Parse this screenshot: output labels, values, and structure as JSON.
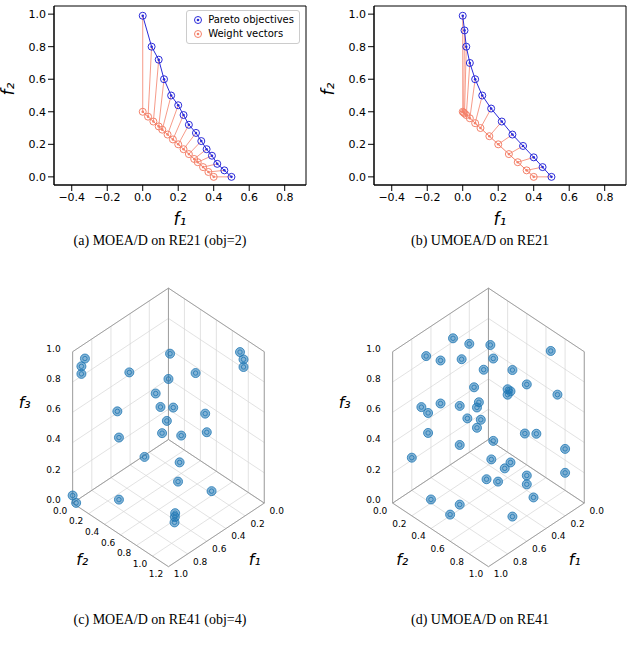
{
  "chart_data": [
    {
      "type": "scatter",
      "title": "(a) MOEA/D on RE21 (obj=2)",
      "xlabel": "f₁",
      "ylabel": "f₂",
      "xlim": [
        -0.5,
        0.92
      ],
      "xticks": [
        {
          "value": -0.4,
          "label": "−0.4"
        },
        {
          "value": -0.2,
          "label": "−0.2"
        },
        {
          "value": 0,
          "label": "0.0"
        },
        {
          "value": 0.2,
          "label": "0.2"
        },
        {
          "value": 0.4,
          "label": "0.4"
        },
        {
          "value": 0.6,
          "label": "0.6"
        },
        {
          "value": 0.8,
          "label": "0.8"
        }
      ],
      "ylim": [
        -0.05,
        1.05
      ],
      "yticks": [
        {
          "value": 0,
          "label": "0.0"
        },
        {
          "value": 0.2,
          "label": "0.2"
        },
        {
          "value": 0.4,
          "label": "0.4"
        },
        {
          "value": 0.6,
          "label": "0.6"
        },
        {
          "value": 0.8,
          "label": "0.8"
        },
        {
          "value": 1,
          "label": "1.0"
        }
      ],
      "grid": false,
      "legend": "upper right",
      "series": [
        {
          "name": "Pareto objectives",
          "color": "#2b2bd9",
          "marker": "circle",
          "line_style": "solid",
          "x": [
            0,
            0.05,
            0.09,
            0.12,
            0.16,
            0.2,
            0.23,
            0.26,
            0.3,
            0.33,
            0.36,
            0.39,
            0.42,
            0.46,
            0.5
          ],
          "values": [
            0.99,
            0.8,
            0.72,
            0.6,
            0.5,
            0.44,
            0.38,
            0.32,
            0.27,
            0.22,
            0.17,
            0.13,
            0.08,
            0.04,
            0.0
          ]
        },
        {
          "name": "Weight vectors",
          "color": "#f4826b",
          "marker": "circle",
          "line_style": "solid",
          "x": [
            0,
            0.03,
            0.06,
            0.09,
            0.11,
            0.14,
            0.17,
            0.2,
            0.23,
            0.26,
            0.29,
            0.31,
            0.34,
            0.37,
            0.4
          ],
          "values": [
            0.4,
            0.37,
            0.34,
            0.31,
            0.29,
            0.26,
            0.23,
            0.2,
            0.17,
            0.14,
            0.11,
            0.09,
            0.06,
            0.03,
            0.0
          ]
        }
      ]
    },
    {
      "type": "scatter",
      "title": "(b) UMOEA/D on RE21",
      "xlabel": "f₁",
      "ylabel": "f₂",
      "xlim": [
        -0.5,
        0.92
      ],
      "xticks": [
        {
          "value": -0.4,
          "label": "−0.4"
        },
        {
          "value": -0.2,
          "label": "−0.2"
        },
        {
          "value": 0,
          "label": "0.0"
        },
        {
          "value": 0.2,
          "label": "0.2"
        },
        {
          "value": 0.4,
          "label": "0.4"
        },
        {
          "value": 0.6,
          "label": "0.6"
        },
        {
          "value": 0.8,
          "label": "0.8"
        }
      ],
      "ylim": [
        -0.05,
        1.05
      ],
      "yticks": [
        {
          "value": 0,
          "label": "0.0"
        },
        {
          "value": 0.2,
          "label": "0.2"
        },
        {
          "value": 0.4,
          "label": "0.4"
        },
        {
          "value": 0.6,
          "label": "0.6"
        },
        {
          "value": 0.8,
          "label": "0.8"
        },
        {
          "value": 1,
          "label": "1.0"
        }
      ],
      "grid": false,
      "series": [
        {
          "color": "#2b2bd9",
          "marker": "circle",
          "line_style": "solid",
          "x": [
            0,
            0.01,
            0.02,
            0.04,
            0.07,
            0.11,
            0.16,
            0.22,
            0.28,
            0.34,
            0.4,
            0.45,
            0.5
          ],
          "values": [
            0.99,
            0.9,
            0.8,
            0.7,
            0.6,
            0.5,
            0.42,
            0.34,
            0.26,
            0.19,
            0.12,
            0.06,
            0.0
          ]
        },
        {
          "color": "#f4826b",
          "marker": "circle",
          "line_style": "solid",
          "x": [
            0,
            0.005,
            0.01,
            0.02,
            0.04,
            0.07,
            0.1,
            0.15,
            0.2,
            0.26,
            0.31,
            0.36,
            0.4
          ],
          "values": [
            0.4,
            0.395,
            0.39,
            0.38,
            0.36,
            0.33,
            0.3,
            0.25,
            0.2,
            0.14,
            0.09,
            0.04,
            0.0
          ]
        }
      ]
    },
    {
      "type": "scatter3d",
      "title": "(c) MOEA/D on RE41 (obj=4)",
      "xlabel": "f₁",
      "ylabel": "f₂",
      "zlabel": "f₃",
      "xlim": [
        0,
        1
      ],
      "xticks": [
        {
          "value": 0,
          "label": "0.0"
        },
        {
          "value": 0.2,
          "label": "0.2"
        },
        {
          "value": 0.4,
          "label": "0.4"
        },
        {
          "value": 0.6,
          "label": "0.6"
        },
        {
          "value": 0.8,
          "label": "0.8"
        },
        {
          "value": 1,
          "label": "1.0"
        }
      ],
      "ylim": [
        0,
        1.2
      ],
      "yticks": [
        {
          "value": 0,
          "label": "0.0"
        },
        {
          "value": 0.2,
          "label": "0.2"
        },
        {
          "value": 0.4,
          "label": "0.4"
        },
        {
          "value": 0.6,
          "label": "0.6"
        },
        {
          "value": 0.8,
          "label": "0.8"
        },
        {
          "value": 1,
          "label": "1.0"
        },
        {
          "value": 1.2,
          "label": "1.2"
        }
      ],
      "zlim": [
        0,
        1
      ],
      "zticks": [
        {
          "value": 0,
          "label": "0.0"
        },
        {
          "value": 0.2,
          "label": "0.2"
        },
        {
          "value": 0.4,
          "label": "0.4"
        },
        {
          "value": 0.6,
          "label": "0.6"
        },
        {
          "value": 0.8,
          "label": "0.8"
        },
        {
          "value": 1,
          "label": "1.0"
        }
      ],
      "grid": true,
      "color": "#1f77b4",
      "marker": "circle",
      "x": [
        0.95,
        0.95,
        0.93,
        0.05,
        0.05,
        0.07,
        1.0,
        0.98,
        0.6,
        0.62,
        0.58,
        0.4,
        0.3,
        0.5,
        0.2,
        0.3,
        0.1,
        0.6,
        0.2,
        0.7,
        0.15,
        0.4,
        0.1,
        0.05,
        0.45,
        0.3,
        0.85,
        0.2,
        0.5,
        0.0
      ],
      "y": [
        0.05,
        0.05,
        0.07,
        1.0,
        1.0,
        0.98,
        0.0,
        0.02,
        0.8,
        0.82,
        0.78,
        0.6,
        0.5,
        0.3,
        0.3,
        0.2,
        0.6,
        0.1,
        0.7,
        0.2,
        0.2,
        0.4,
        0.1,
        0.4,
        0.05,
        0.9,
        0.4,
        0.4,
        0.5,
        0.0
      ],
      "z": [
        0.9,
        0.85,
        0.95,
        0.9,
        0.85,
        0.95,
        0.05,
        0.0,
        0.02,
        0.0,
        0.03,
        0.1,
        0.15,
        0.2,
        0.4,
        0.5,
        0.3,
        0.3,
        0.5,
        0.55,
        0.7,
        0.35,
        0.2,
        0.6,
        0.65,
        0.1,
        0.1,
        0.25,
        0.6,
        0.4
      ]
    },
    {
      "type": "scatter3d",
      "title": "(d) UMOEA/D on RE41",
      "xlabel": "f₁",
      "ylabel": "f₂",
      "zlabel": "f₃",
      "xlim": [
        0,
        1
      ],
      "xticks": [
        {
          "value": 0,
          "label": "0.0"
        },
        {
          "value": 0.2,
          "label": "0.2"
        },
        {
          "value": 0.4,
          "label": "0.4"
        },
        {
          "value": 0.6,
          "label": "0.6"
        },
        {
          "value": 0.8,
          "label": "0.8"
        },
        {
          "value": 1,
          "label": "1.0"
        }
      ],
      "ylim": [
        0,
        1
      ],
      "yticks": [
        {
          "value": 0,
          "label": "0.0"
        },
        {
          "value": 0.2,
          "label": "0.2"
        },
        {
          "value": 0.4,
          "label": "0.4"
        },
        {
          "value": 0.6,
          "label": "0.6"
        },
        {
          "value": 0.8,
          "label": "0.8"
        },
        {
          "value": 1,
          "label": "1.0"
        }
      ],
      "zlim": [
        0,
        1
      ],
      "zticks": [
        {
          "value": 0,
          "label": "0.0"
        },
        {
          "value": 0.2,
          "label": "0.2"
        },
        {
          "value": 0.4,
          "label": "0.4"
        },
        {
          "value": 0.6,
          "label": "0.6"
        },
        {
          "value": 0.8,
          "label": "0.8"
        },
        {
          "value": 1,
          "label": "1.0"
        }
      ],
      "grid": true,
      "color": "#1f77b4",
      "marker": "circle",
      "x": [
        0.1,
        0.3,
        0.5,
        0.7,
        0.9,
        0.2,
        0.4,
        0.6,
        0.8,
        0.15,
        0.35,
        0.55,
        0.75,
        0.95,
        0.05,
        0.25,
        0.45,
        0.65,
        0.85,
        0.1,
        0.3,
        0.5,
        0.7,
        0.9,
        0.2,
        0.4,
        0.6,
        0.8,
        0.12,
        0.32,
        0.52,
        0.72,
        0.92,
        0.22,
        0.42,
        0.62,
        0.82,
        0.08,
        0.28,
        0.48,
        0.68,
        0.88,
        0.18,
        0.38,
        0.58
      ],
      "y": [
        0.9,
        0.8,
        0.7,
        0.2,
        0.1,
        0.6,
        0.5,
        0.3,
        0.15,
        0.95,
        0.4,
        0.25,
        0.05,
        0.35,
        0.7,
        0.2,
        0.85,
        0.55,
        0.45,
        0.3,
        0.1,
        0.9,
        0.75,
        0.6,
        0.05,
        0.65,
        0.85,
        0.3,
        0.5,
        0.35,
        0.15,
        0.95,
        0.8,
        0.45,
        0.2,
        0.6,
        0.7,
        0.1,
        0.75,
        0.4,
        0.05,
        0.25,
        0.9,
        0.55,
        0.3
      ],
      "z": [
        0.2,
        0.5,
        0.8,
        0.9,
        0.3,
        0.7,
        0.1,
        0.6,
        0.95,
        0.4,
        0.85,
        0.3,
        0.55,
        0.15,
        0.9,
        0.65,
        0.25,
        0.75,
        0.05,
        0.5,
        0.8,
        0.35,
        0.6,
        0.2,
        0.45,
        0.9,
        0.1,
        0.7,
        0.3,
        0.15,
        0.95,
        0.55,
        0.8,
        0.6,
        0.4,
        0.25,
        0.85,
        0.7,
        0.05,
        0.5,
        0.35,
        0.65,
        0.75,
        0.2,
        0.9
      ]
    }
  ]
}
